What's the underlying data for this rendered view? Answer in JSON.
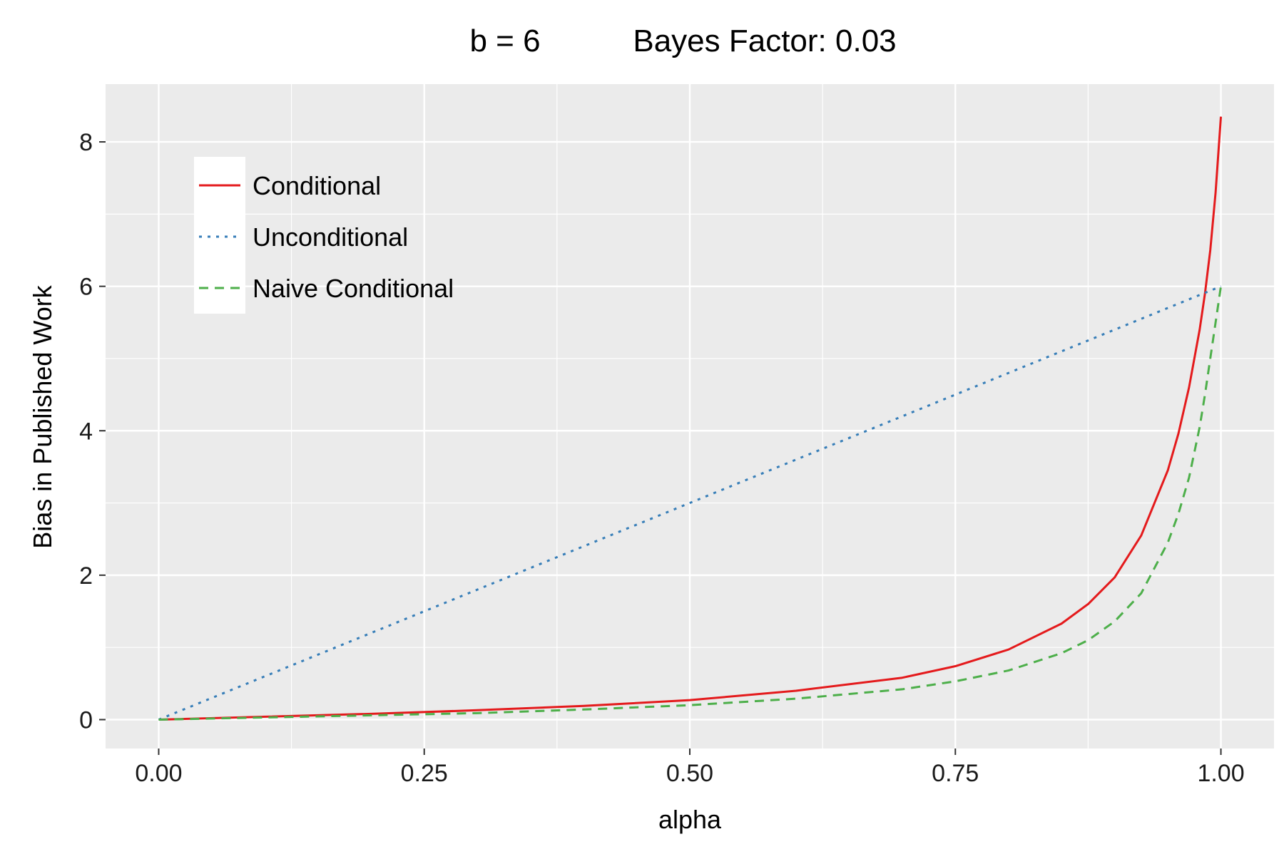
{
  "chart_data": {
    "type": "line",
    "title": "b = 6",
    "subtitle": "Bayes Factor: 0.03",
    "xlabel": "alpha",
    "ylabel": "Bias in Published Work",
    "xlim": [
      -0.05,
      1.05
    ],
    "ylim": [
      -0.4,
      8.8
    ],
    "x_ticks": [
      0,
      0.25,
      0.5,
      0.75,
      1.0
    ],
    "x_tick_labels": [
      "0.00",
      "0.25",
      "0.50",
      "0.75",
      "1.00"
    ],
    "y_ticks": [
      0,
      2,
      4,
      6,
      8
    ],
    "y_tick_labels": [
      "0",
      "2",
      "4",
      "6",
      "8"
    ],
    "x_minor": [
      0.125,
      0.375,
      0.625,
      0.875
    ],
    "y_minor": [
      1,
      3,
      5,
      7
    ],
    "grid": true,
    "legend_position": "top-left",
    "panel_background": "#EBEBEB",
    "grid_color": "#FFFFFF",
    "series": [
      {
        "name": "Conditional",
        "color": "#E41A1C",
        "linetype": "solid",
        "x": [
          0,
          0.1,
          0.2,
          0.3,
          0.4,
          0.5,
          0.6,
          0.7,
          0.75,
          0.8,
          0.85,
          0.875,
          0.9,
          0.925,
          0.95,
          0.96,
          0.97,
          0.98,
          0.985,
          0.99,
          0.995,
          1.0
        ],
        "values": [
          0,
          0.04,
          0.08,
          0.13,
          0.19,
          0.27,
          0.4,
          0.58,
          0.74,
          0.97,
          1.33,
          1.6,
          1.97,
          2.55,
          3.45,
          3.96,
          4.6,
          5.4,
          5.9,
          6.5,
          7.3,
          8.35
        ]
      },
      {
        "name": "Unconditional",
        "color": "#377EB8",
        "linetype": "dotted",
        "x": [
          0,
          1.0
        ],
        "values": [
          0,
          6.0
        ]
      },
      {
        "name": "Naive Conditional",
        "color": "#4DAF4A",
        "linetype": "dashed",
        "x": [
          0,
          0.1,
          0.2,
          0.3,
          0.4,
          0.5,
          0.6,
          0.7,
          0.75,
          0.8,
          0.85,
          0.875,
          0.9,
          0.925,
          0.95,
          0.96,
          0.97,
          0.98,
          0.985,
          0.99,
          0.995,
          1.0
        ],
        "values": [
          0,
          0.03,
          0.06,
          0.09,
          0.14,
          0.2,
          0.29,
          0.42,
          0.53,
          0.68,
          0.92,
          1.1,
          1.36,
          1.75,
          2.45,
          2.85,
          3.35,
          4.05,
          4.5,
          5.0,
          5.5,
          6.0
        ]
      }
    ]
  }
}
